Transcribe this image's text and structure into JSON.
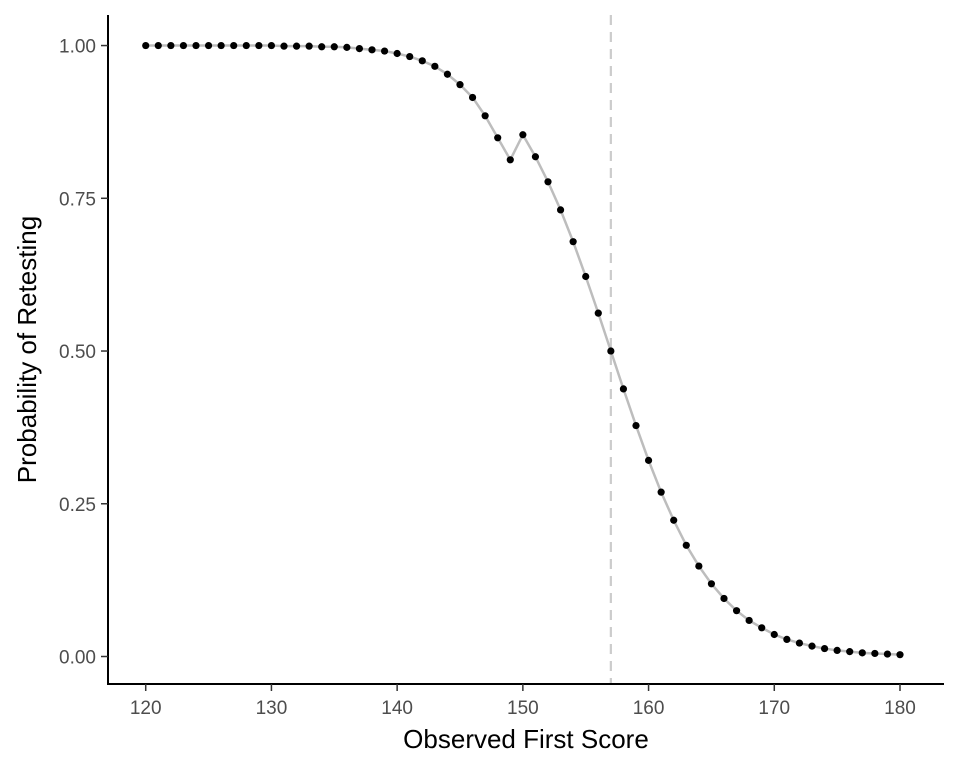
{
  "chart_data": {
    "type": "scatter",
    "title": "",
    "xlabel": "Observed First Score",
    "ylabel": "Probability of Retesting",
    "xlim": [
      117,
      183.5
    ],
    "ylim": [
      -0.045,
      1.05
    ],
    "x_ticks": [
      120,
      130,
      140,
      150,
      160,
      170,
      180
    ],
    "y_ticks": [
      0,
      0.25,
      0.5,
      0.75,
      1.0
    ],
    "x_tick_labels": [
      "120",
      "130",
      "140",
      "150",
      "160",
      "170",
      "180"
    ],
    "y_tick_labels": [
      "0.00",
      "0.25",
      "0.50",
      "0.75",
      "1.00"
    ],
    "grid": false,
    "reference_line": {
      "orientation": "vertical",
      "x": 157,
      "style": "dashed"
    },
    "series": [
      {
        "x": [
          120,
          121,
          122,
          123,
          124,
          125,
          126,
          127,
          128,
          129,
          130,
          131,
          132,
          133,
          134,
          135,
          136,
          137,
          138,
          139,
          140,
          141,
          142,
          143,
          144,
          145,
          146,
          147,
          148,
          149,
          150,
          151,
          152,
          153,
          154,
          155,
          156,
          157,
          158,
          159,
          160,
          161,
          162,
          163,
          164,
          165,
          166,
          167,
          168,
          169,
          170,
          171,
          172,
          173,
          174,
          175,
          176,
          177,
          178,
          179,
          180
        ],
        "y": [
          1.0,
          1.0,
          1.0,
          1.0,
          1.0,
          1.0,
          1.0,
          1.0,
          1.0,
          1.0,
          1.0,
          0.999,
          0.999,
          0.999,
          0.998,
          0.998,
          0.997,
          0.995,
          0.993,
          0.991,
          0.987,
          0.982,
          0.975,
          0.966,
          0.953,
          0.936,
          0.915,
          0.885,
          0.849,
          0.813,
          0.854,
          0.818,
          0.777,
          0.731,
          0.679,
          0.622,
          0.562,
          0.5,
          0.438,
          0.378,
          0.321,
          0.269,
          0.223,
          0.182,
          0.148,
          0.119,
          0.095,
          0.075,
          0.059,
          0.047,
          0.036,
          0.028,
          0.022,
          0.017,
          0.013,
          0.01,
          0.008,
          0.006,
          0.005,
          0.004,
          0.003
        ]
      }
    ]
  }
}
